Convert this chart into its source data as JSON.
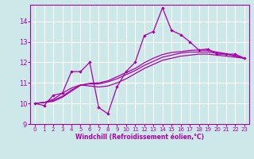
{
  "title": "",
  "xlabel": "Windchill (Refroidissement éolien,°C)",
  "ylabel": "",
  "background_color": "#cce8e8",
  "line_color": "#aa00aa",
  "grid_color": "#ffffff",
  "xlim": [
    -0.5,
    23.5
  ],
  "ylim": [
    9,
    14.8
  ],
  "xticks": [
    0,
    1,
    2,
    3,
    4,
    5,
    6,
    7,
    8,
    9,
    10,
    11,
    12,
    13,
    14,
    15,
    16,
    17,
    18,
    19,
    20,
    21,
    22,
    23
  ],
  "yticks": [
    9,
    10,
    11,
    12,
    13,
    14
  ],
  "series1_x": [
    0,
    1,
    2,
    3,
    4,
    5,
    6,
    7,
    8,
    9,
    10,
    11,
    12,
    13,
    14,
    15,
    16,
    17,
    18,
    19,
    20,
    21,
    22,
    23
  ],
  "series1_y": [
    10.0,
    9.9,
    10.4,
    10.5,
    11.55,
    11.55,
    12.0,
    9.8,
    9.5,
    10.8,
    11.55,
    12.0,
    13.3,
    13.5,
    14.65,
    13.55,
    13.35,
    13.0,
    12.6,
    12.65,
    12.4,
    12.4,
    12.4,
    12.2
  ],
  "series2_x": [
    0,
    1,
    2,
    3,
    4,
    5,
    6,
    7,
    8,
    9,
    10,
    11,
    12,
    13,
    14,
    15,
    16,
    17,
    18,
    19,
    20,
    21,
    22,
    23
  ],
  "series2_y": [
    10.0,
    10.05,
    10.2,
    10.5,
    10.75,
    10.9,
    10.85,
    10.8,
    10.85,
    11.0,
    11.2,
    11.45,
    11.7,
    11.9,
    12.1,
    12.2,
    12.3,
    12.35,
    12.4,
    12.4,
    12.35,
    12.3,
    12.25,
    12.2
  ],
  "series3_x": [
    0,
    1,
    2,
    3,
    4,
    5,
    6,
    7,
    8,
    9,
    10,
    11,
    12,
    13,
    14,
    15,
    16,
    17,
    18,
    19,
    20,
    21,
    22,
    23
  ],
  "series3_y": [
    10.0,
    10.05,
    10.15,
    10.35,
    10.65,
    10.9,
    10.95,
    10.95,
    11.05,
    11.2,
    11.4,
    11.6,
    11.85,
    12.05,
    12.25,
    12.35,
    12.45,
    12.5,
    12.5,
    12.5,
    12.45,
    12.4,
    12.3,
    12.2
  ],
  "series4_x": [
    0,
    1,
    2,
    3,
    4,
    5,
    6,
    7,
    8,
    9,
    10,
    11,
    12,
    13,
    14,
    15,
    16,
    17,
    18,
    19,
    20,
    21,
    22,
    23
  ],
  "series4_y": [
    10.0,
    10.05,
    10.1,
    10.3,
    10.6,
    10.88,
    10.98,
    11.0,
    11.1,
    11.3,
    11.5,
    11.7,
    11.98,
    12.2,
    12.38,
    12.48,
    12.52,
    12.58,
    12.6,
    12.58,
    12.5,
    12.42,
    12.32,
    12.2
  ]
}
